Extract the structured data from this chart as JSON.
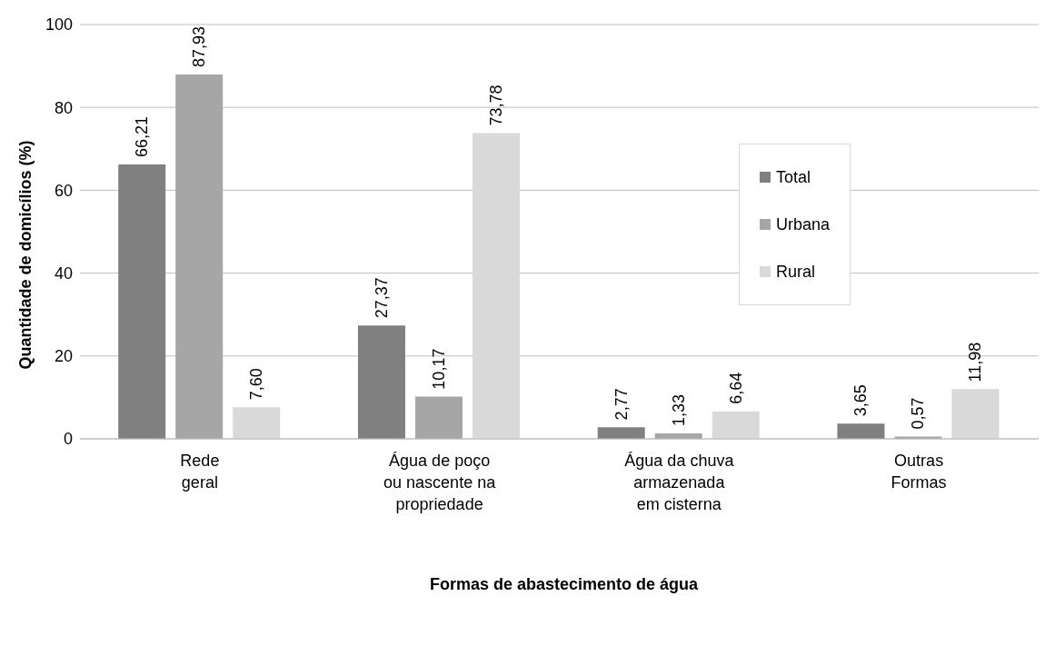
{
  "chart_data": {
    "type": "bar",
    "xlabel": "Formas de abastecimento de água",
    "ylabel": "Quantidade de domicílios (%)",
    "categories": [
      "Rede\ngeral",
      "Água de poço\nou nascente na\npropriedade",
      "Água da chuva\narmazenada\nem cisterna",
      "Outras\nFormas"
    ],
    "series": [
      {
        "name": "Total",
        "color": "#808080",
        "values": [
          66.21,
          27.37,
          2.77,
          3.65
        ],
        "value_labels": [
          "66,21",
          "27,37",
          "2,77",
          "3,65"
        ]
      },
      {
        "name": "Urbana",
        "color": "#a6a6a6",
        "values": [
          87.93,
          10.17,
          1.33,
          0.57
        ],
        "value_labels": [
          "87,93",
          "10,17",
          "1,33",
          "0,57"
        ]
      },
      {
        "name": "Rural",
        "color": "#d9d9d9",
        "values": [
          7.6,
          73.78,
          6.64,
          11.98
        ],
        "value_labels": [
          "7,60",
          "73,78",
          "6,64",
          "11,98"
        ]
      }
    ],
    "ylim": [
      0,
      100
    ],
    "yticks": [
      0,
      20,
      40,
      60,
      80,
      100
    ],
    "grid": "y",
    "legend": "top right"
  }
}
